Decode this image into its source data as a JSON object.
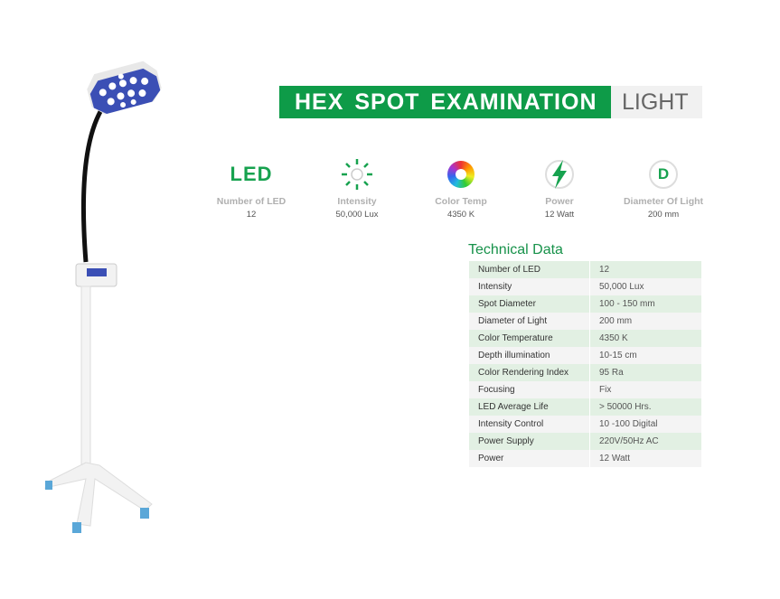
{
  "banner": {
    "title": "HEX SPOT EXAMINATION",
    "subtitle": "LIGHT"
  },
  "features": [
    {
      "icon": "led-text-icon",
      "icon_text": "LED",
      "label": "Number of LED",
      "value": "12"
    },
    {
      "icon": "sun-icon",
      "label": "Intensity",
      "value": "50,000 Lux"
    },
    {
      "icon": "color-wheel-icon",
      "label": "Color Temp",
      "value": "4350 K"
    },
    {
      "icon": "lightning-bolt-icon",
      "label": "Power",
      "value": "12 Watt"
    },
    {
      "icon": "diameter-d-icon",
      "icon_text": "D",
      "label": "Diameter Of Light",
      "value": "200 mm"
    }
  ],
  "technical": {
    "title": "Technical Data",
    "rows": [
      [
        "Number of LED",
        "12"
      ],
      [
        "Intensity",
        "50,000 Lux"
      ],
      [
        "Spot Diameter",
        "100 - 150 mm"
      ],
      [
        "Diameter of Light",
        "200 mm"
      ],
      [
        "Color Temperature",
        "4350 K"
      ],
      [
        "Depth illumination",
        "10-15 cm"
      ],
      [
        "Color Rendering Index",
        "95 Ra"
      ],
      [
        "Focusing",
        "Fix"
      ],
      [
        "LED Average Life",
        "> 50000 Hrs."
      ],
      [
        "Intensity Control",
        "10 -100 Digital"
      ],
      [
        "Power Supply",
        "220V/50Hz AC"
      ],
      [
        "Power",
        "12 Watt"
      ]
    ]
  },
  "colors": {
    "brand_green": "#0e9b48",
    "lamp_blue": "#3b4fb5"
  }
}
